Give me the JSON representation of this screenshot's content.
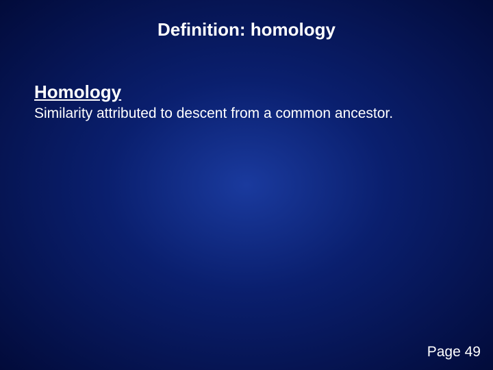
{
  "slide": {
    "title": "Definition: homology",
    "term": "Homology",
    "definition": "Similarity attributed to descent from a common ancestor.",
    "page_label": "Page 49"
  },
  "style": {
    "background_gradient_center": "#1a3a9e",
    "background_gradient_mid": "#0a1f6e",
    "background_gradient_edge": "#020b3a",
    "text_color": "#ffffff",
    "title_fontsize": 26,
    "term_fontsize": 26,
    "definition_fontsize": 21,
    "page_fontsize": 21,
    "font_family": "Arial"
  }
}
